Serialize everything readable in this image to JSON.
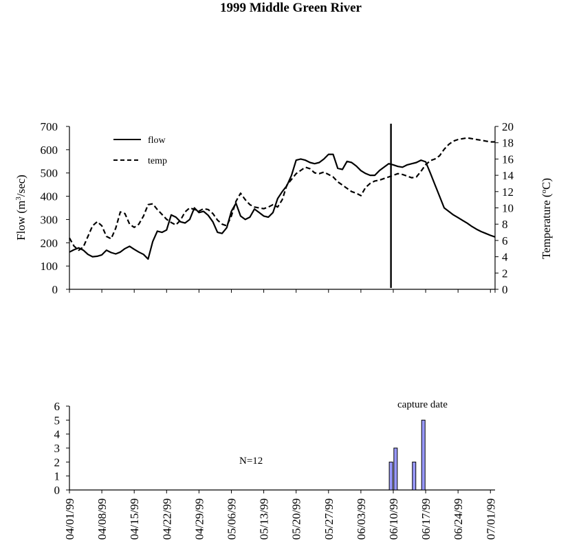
{
  "title": "1999 Middle Green River",
  "chart_data": [
    {
      "type": "line",
      "ylabel_left": "Flow (m³/sec)",
      "ylabel_left_pre": "Flow (m",
      "ylabel_left_sup": "3",
      "ylabel_left_post": "/sec)",
      "ylabel_right": "Temperature (°C)",
      "ylabel_right_pre": "Temperature (",
      "ylabel_right_sup": "o",
      "ylabel_right_post": "C)",
      "ylim_left": [
        0,
        700
      ],
      "ylim_right": [
        0,
        20
      ],
      "yticks_left": [
        "0",
        "100",
        "200",
        "300",
        "400",
        "500",
        "600",
        "700"
      ],
      "yticks_right": [
        "0",
        "2",
        "4",
        "6",
        "8",
        "10",
        "12",
        "14",
        "16",
        "18",
        "20"
      ],
      "x_range_days": [
        0,
        92
      ],
      "x_start_label": "04/01/99",
      "legend_position": "top-left",
      "vertical_marker_day": 69.5,
      "series": [
        {
          "name": "flow",
          "style": "solid",
          "axis": "left",
          "x": [
            0,
            1,
            2,
            3,
            4,
            5,
            6,
            7,
            8,
            9,
            10,
            11,
            12,
            13,
            14,
            15,
            16,
            17,
            18,
            19,
            20,
            21,
            22,
            23,
            24,
            25,
            26,
            27,
            28,
            29,
            30,
            31,
            32,
            33,
            34,
            35,
            36,
            37,
            38,
            39,
            40,
            41,
            42,
            43,
            44,
            45,
            46,
            47,
            48,
            49,
            50,
            51,
            52,
            53,
            54,
            55,
            56,
            57,
            58,
            59,
            60,
            61,
            62,
            63,
            64,
            65,
            66,
            67,
            68,
            69,
            70,
            71,
            72,
            73,
            74,
            75,
            76,
            77,
            78,
            79,
            80,
            81,
            82,
            83,
            84,
            85,
            86,
            87,
            88,
            89,
            90,
            91,
            92
          ],
          "y": [
            160,
            170,
            178,
            168,
            150,
            140,
            142,
            148,
            168,
            158,
            152,
            160,
            175,
            185,
            172,
            160,
            150,
            130,
            205,
            250,
            245,
            255,
            320,
            310,
            290,
            285,
            300,
            350,
            330,
            335,
            318,
            290,
            245,
            240,
            265,
            335,
            370,
            315,
            300,
            310,
            345,
            330,
            315,
            310,
            330,
            390,
            420,
            445,
            490,
            555,
            560,
            555,
            545,
            540,
            545,
            560,
            580,
            580,
            520,
            515,
            550,
            545,
            530,
            510,
            498,
            490,
            490,
            510,
            525,
            540,
            535,
            528,
            525,
            535,
            540,
            545,
            555,
            548,
            500,
            450,
            400,
            350,
            335,
            320,
            308,
            296,
            284,
            270,
            258,
            248,
            240,
            232,
            225
          ],
          "y_day_scale_note": ""
        },
        {
          "name": "temp",
          "style": "dashed",
          "axis": "right",
          "x": [
            0,
            1,
            2,
            3,
            4,
            5,
            6,
            7,
            8,
            9,
            10,
            11,
            12,
            13,
            14,
            15,
            16,
            17,
            18,
            19,
            20,
            21,
            22,
            23,
            24,
            25,
            26,
            27,
            28,
            29,
            30,
            31,
            32,
            33,
            34,
            35,
            36,
            37,
            38,
            39,
            40,
            41,
            42,
            43,
            44,
            45,
            46,
            47,
            48,
            49,
            50,
            51,
            52,
            53,
            54,
            55,
            56,
            57,
            58,
            59,
            60,
            61,
            62,
            63,
            64,
            65,
            66,
            67,
            68,
            69,
            70,
            71,
            72,
            73,
            74,
            75,
            76,
            77,
            78,
            79,
            80,
            81,
            82,
            83,
            84,
            85,
            86,
            87,
            88,
            89,
            90,
            91,
            92
          ],
          "y": [
            6.3,
            5.3,
            4.8,
            5.2,
            6.5,
            7.8,
            8.3,
            7.8,
            6.5,
            6.2,
            7.5,
            9.5,
            9.3,
            8.0,
            7.6,
            8.0,
            9.0,
            10.4,
            10.5,
            9.8,
            9.2,
            8.6,
            8.2,
            7.9,
            8.5,
            9.5,
            10.0,
            9.8,
            9.6,
            9.9,
            9.8,
            9.3,
            8.5,
            8.0,
            7.8,
            9.0,
            10.8,
            11.8,
            11.0,
            10.4,
            10.1,
            10.0,
            9.9,
            10.1,
            10.4,
            10.1,
            11.0,
            12.8,
            13.5,
            14.2,
            14.6,
            15.0,
            14.8,
            14.3,
            14.2,
            14.4,
            14.1,
            13.8,
            13.2,
            12.8,
            12.4,
            12.0,
            11.8,
            11.5,
            12.5,
            13.0,
            13.3,
            13.4,
            13.6,
            13.8,
            14.0,
            14.2,
            14.1,
            13.9,
            13.7,
            13.8,
            14.5,
            15.3,
            15.8,
            16.0,
            16.4,
            17.2,
            17.8,
            18.2,
            18.4,
            18.5,
            18.6,
            18.5,
            18.4,
            18.3,
            18.2,
            18.1,
            18.1
          ]
        }
      ]
    },
    {
      "type": "bar",
      "ylim": [
        0,
        6
      ],
      "yticks": [
        "0",
        "1",
        "2",
        "3",
        "4",
        "5",
        "6"
      ],
      "annotation_n": "N=12",
      "annotation_capture": "capture date",
      "x_labels": [
        "04/01/99",
        "04/08/99",
        "04/15/99",
        "04/22/99",
        "04/29/99",
        "05/06/99",
        "05/13/99",
        "05/20/99",
        "05/27/99",
        "06/03/99",
        "06/10/99",
        "06/17/99",
        "06/24/99",
        "07/01/99"
      ],
      "bars": [
        {
          "day": 69.5,
          "value": 2
        },
        {
          "day": 70.5,
          "value": 3
        },
        {
          "day": 74.5,
          "value": 2
        },
        {
          "day": 76.5,
          "value": 5
        }
      ],
      "bar_color": "#9999ff"
    }
  ]
}
